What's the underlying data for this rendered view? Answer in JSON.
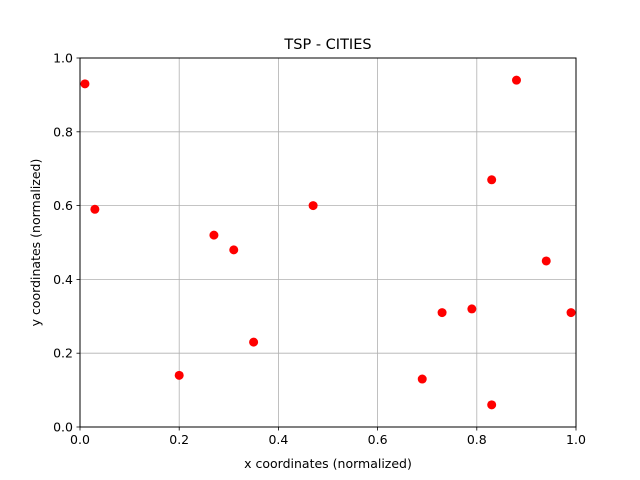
{
  "chart_data": {
    "type": "scatter",
    "title": "TSP - CITIES",
    "xlabel": "x coordinates (normalized)",
    "ylabel": "y coordinates (normalized)",
    "xlim": [
      0,
      1
    ],
    "ylim": [
      0,
      1
    ],
    "xticks": [
      "0.0",
      "0.2",
      "0.4",
      "0.6",
      "0.8",
      "1.0"
    ],
    "yticks": [
      "0.0",
      "0.2",
      "0.4",
      "0.6",
      "0.8",
      "1.0"
    ],
    "grid": true,
    "marker_color": "#ff0000",
    "points": [
      {
        "x": 0.01,
        "y": 0.93
      },
      {
        "x": 0.03,
        "y": 0.59
      },
      {
        "x": 0.2,
        "y": 0.14
      },
      {
        "x": 0.27,
        "y": 0.52
      },
      {
        "x": 0.31,
        "y": 0.48
      },
      {
        "x": 0.35,
        "y": 0.23
      },
      {
        "x": 0.47,
        "y": 0.6
      },
      {
        "x": 0.69,
        "y": 0.13
      },
      {
        "x": 0.73,
        "y": 0.31
      },
      {
        "x": 0.79,
        "y": 0.32
      },
      {
        "x": 0.83,
        "y": 0.67
      },
      {
        "x": 0.83,
        "y": 0.06
      },
      {
        "x": 0.88,
        "y": 0.94
      },
      {
        "x": 0.94,
        "y": 0.45
      },
      {
        "x": 0.99,
        "y": 0.31
      }
    ]
  }
}
